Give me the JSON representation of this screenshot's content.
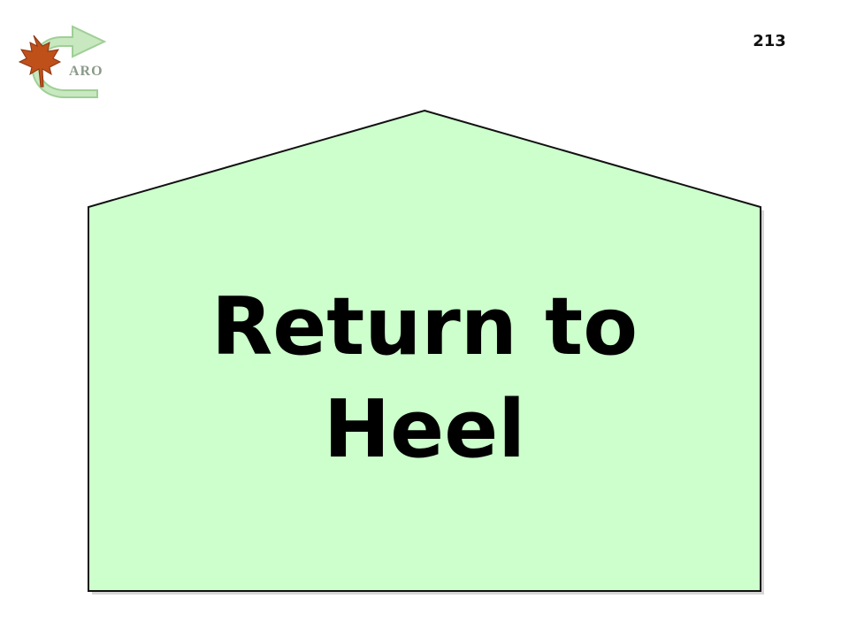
{
  "logo": {
    "text": "ARO",
    "icon": "maple-leaf-with-curved-arrow"
  },
  "page_number": "213",
  "sign": {
    "line1": "Return to",
    "line2": "Heel",
    "fill_color": "#ccffcc",
    "stroke_color": "#111111"
  }
}
